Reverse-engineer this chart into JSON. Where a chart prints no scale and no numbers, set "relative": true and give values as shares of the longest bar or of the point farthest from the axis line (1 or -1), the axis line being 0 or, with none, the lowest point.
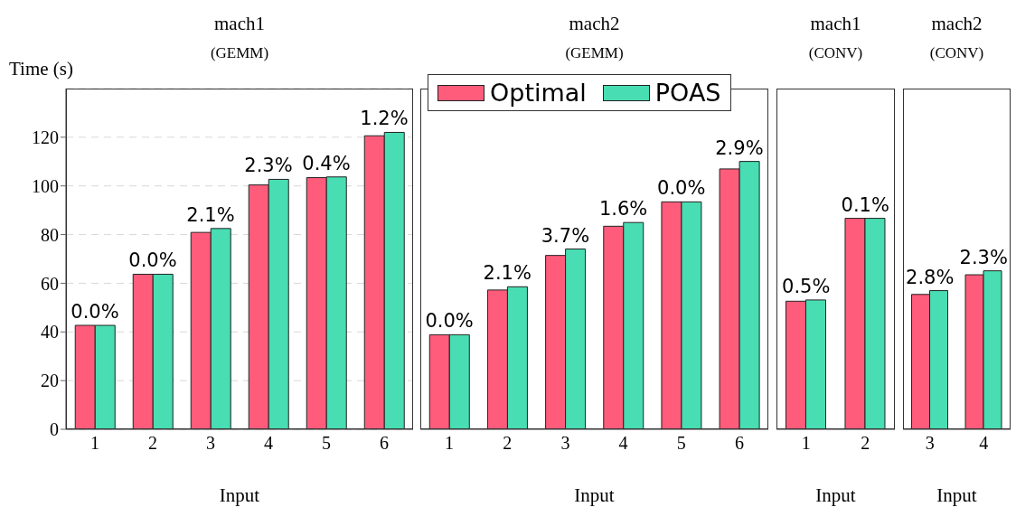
{
  "chart_data": [
    {
      "type": "bar",
      "title": "mach1",
      "subtitle": "(GEMM)",
      "xlabel": "Input",
      "ylabel": "Time (s)",
      "categories": [
        "1",
        "2",
        "3",
        "4",
        "5",
        "6"
      ],
      "series": [
        {
          "color": "#ff5c7c",
          "values": [
            42.7,
            63.7,
            80.9,
            100.4,
            103.4,
            120.6
          ]
        },
        {
          "color": "#48ddb2",
          "values": [
            42.7,
            63.7,
            82.5,
            102.7,
            103.7,
            122.0
          ]
        }
      ],
      "annotations": [
        {
          "text": "0.0%",
          "x": "1",
          "y": 42.7
        },
        {
          "text": "0.0%",
          "x": "2",
          "y": 63.7
        },
        {
          "text": "2.1%",
          "x": "3",
          "y": 82.5
        },
        {
          "text": "2.3%",
          "x": "4",
          "y": 102.7
        },
        {
          "text": "0.4%",
          "x": "5",
          "y": 103.7
        },
        {
          "text": "1.2%",
          "x": "6",
          "y": 122.0
        }
      ],
      "ylim": [
        0,
        140
      ],
      "yticks": [
        0,
        20,
        40,
        60,
        80,
        100,
        120
      ],
      "grid": "y"
    },
    {
      "type": "bar",
      "title": "mach2",
      "subtitle": "(GEMM)",
      "xlabel": "Input",
      "categories": [
        "1",
        "2",
        "3",
        "4",
        "5",
        "6"
      ],
      "relative": true,
      "legend": "top",
      "series": [
        {
          "name": "Optimal",
          "color": "#ff5c7c",
          "values": [
            0.353,
            0.52,
            0.649,
            0.758,
            0.849,
            0.972
          ]
        },
        {
          "name": "POAS",
          "color": "#48ddb2",
          "values": [
            0.353,
            0.532,
            0.673,
            0.772,
            0.849,
            1.0
          ]
        }
      ],
      "annotations": [
        {
          "text": "0.0%",
          "x": "1",
          "y": 0.353
        },
        {
          "text": "2.1%",
          "x": "2",
          "y": 0.532
        },
        {
          "text": "3.7%",
          "x": "3",
          "y": 0.673
        },
        {
          "text": "1.6%",
          "x": "4",
          "y": 0.772
        },
        {
          "text": "0.0%",
          "x": "5",
          "y": 0.849
        },
        {
          "text": "2.9%",
          "x": "6",
          "y": 1.0
        }
      ]
    },
    {
      "type": "bar",
      "title": "mach1",
      "subtitle": "(CONV)",
      "xlabel": "Input",
      "categories": [
        "1",
        "2"
      ],
      "relative": true,
      "series": [
        {
          "color": "#ff5c7c",
          "values": [
            0.607,
            1.0
          ]
        },
        {
          "color": "#48ddb2",
          "values": [
            0.613,
            1.0
          ]
        }
      ],
      "annotations": [
        {
          "text": "0.5%",
          "x": "1",
          "y": 0.613
        },
        {
          "text": "0.1%",
          "x": "2",
          "y": 1.0
        }
      ]
    },
    {
      "type": "bar",
      "title": "mach2",
      "subtitle": "(CONV)",
      "xlabel": "Input",
      "categories": [
        "3",
        "4"
      ],
      "relative": true,
      "series": [
        {
          "color": "#ff5c7c",
          "values": [
            0.851,
            0.975
          ]
        },
        {
          "color": "#48ddb2",
          "values": [
            0.875,
            1.0
          ]
        }
      ],
      "annotations": [
        {
          "text": "2.8%",
          "x": "3",
          "y": 0.875
        },
        {
          "text": "2.3%",
          "x": "4",
          "y": 1.0
        }
      ]
    }
  ]
}
